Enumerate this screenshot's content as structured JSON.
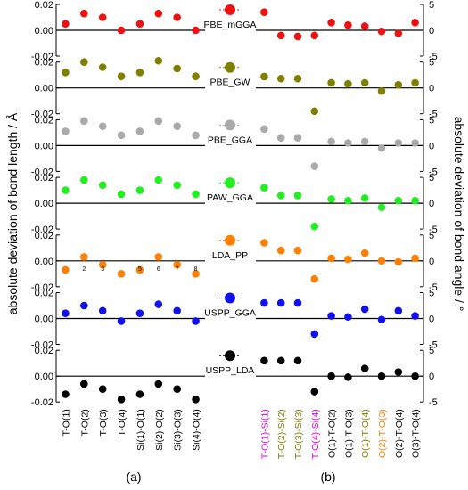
{
  "figure": {
    "ylabel_left": "absolute deviation of bond length / Å",
    "ylabel_right": "absolute deviation of bond angle / °",
    "label_a": "(a)",
    "label_b": "(b)",
    "left_categories": [
      "T-O(1)",
      "T-O(2)",
      "T-O(3)",
      "T-O(4)",
      "Si(1)-O(1)",
      "Si(2)-O(2)",
      "Si(3)-O(3)",
      "Si(4)-O(4)"
    ],
    "right_categories": [
      {
        "label": "T-O(1)-Si(1)",
        "color": "#e000e0"
      },
      {
        "label": "T-O(2)-Si(2)",
        "color": "#808000"
      },
      {
        "label": "T-O(3)-Si(3)",
        "color": "#808000"
      },
      {
        "label": "T-O(4)-Si(4)",
        "color": "#e000e0"
      },
      {
        "label": "O(1)-T-O(2)",
        "color": "#000000"
      },
      {
        "label": "O(1)-T-O(3)",
        "color": "#000000"
      },
      {
        "label": "O(1)-T-O(4)",
        "color": "#808000"
      },
      {
        "label": "O(2)-T-O(3)",
        "color": "#ff8000"
      },
      {
        "label": "O(2)-T-O(4)",
        "color": "#000000"
      },
      {
        "label": "O(3)-T-O(4)",
        "color": "#000000"
      }
    ],
    "left_ticks": [
      "0.02",
      "0.00",
      "-0.02"
    ],
    "right_ticks": [
      "5",
      "0",
      "-5"
    ],
    "panel_a_point_labels": [
      "2",
      "3",
      "5",
      "6",
      "7",
      "8"
    ]
  },
  "chart_data": [
    {
      "type": "scatter",
      "series_label": "PBE_mGGA",
      "color": "#ee1111",
      "bond_length_deviation": [
        0.005,
        0.013,
        0.01,
        0.0,
        0.005,
        0.013,
        0.01,
        0.0
      ],
      "bond_angle_deviation": [
        3.5,
        -1.0,
        -1.2,
        -1.0,
        1.5,
        1.0,
        0.8,
        -0.2,
        -0.6,
        1.5
      ],
      "ylim_length": [
        -0.02,
        0.02
      ],
      "ylim_angle": [
        -5,
        5
      ]
    },
    {
      "type": "scatter",
      "series_label": "PBE_GW",
      "color": "#808000",
      "bond_length_deviation": [
        0.012,
        0.02,
        0.016,
        0.009,
        0.012,
        0.021,
        0.015,
        0.009
      ],
      "bond_angle_deviation": [
        2.2,
        1.8,
        1.8,
        -4.5,
        1.0,
        0.8,
        1.0,
        -0.6,
        0.6,
        1.0
      ],
      "ylim_length": [
        -0.02,
        0.02
      ],
      "ylim_angle": [
        -5,
        5
      ]
    },
    {
      "type": "scatter",
      "series_label": "PBE_GGA",
      "color": "#aaaaaa",
      "bond_length_deviation": [
        0.011,
        0.019,
        0.015,
        0.008,
        0.011,
        0.019,
        0.015,
        0.008
      ],
      "bond_angle_deviation": [
        3.2,
        1.5,
        1.5,
        -4.0,
        0.8,
        0.5,
        0.8,
        -0.5,
        0.5,
        0.5
      ],
      "ylim_length": [
        -0.02,
        0.02
      ],
      "ylim_angle": [
        -5,
        5
      ]
    },
    {
      "type": "scatter",
      "series_label": "PAW_GGA",
      "color": "#22ee22",
      "bond_length_deviation": [
        0.01,
        0.018,
        0.014,
        0.007,
        0.01,
        0.018,
        0.014,
        0.007
      ],
      "bond_angle_deviation": [
        3.0,
        1.5,
        1.5,
        -4.5,
        0.8,
        0.5,
        1.0,
        -0.8,
        0.5,
        0.5
      ],
      "ylim_length": [
        -0.02,
        0.02
      ],
      "ylim_angle": [
        -5,
        5
      ]
    },
    {
      "type": "scatter",
      "series_label": "LDA_PP",
      "color": "#ff8000",
      "bond_length_deviation": [
        -0.007,
        0.003,
        -0.003,
        -0.01,
        -0.007,
        0.003,
        -0.003,
        -0.01
      ],
      "bond_angle_deviation": [
        3.5,
        2.0,
        2.0,
        -3.5,
        0.5,
        0.3,
        1.5,
        0.0,
        -0.2,
        0.5
      ],
      "ylim_length": [
        -0.02,
        0.02
      ],
      "ylim_angle": [
        -5,
        5
      ]
    },
    {
      "type": "scatter",
      "series_label": "USPP_GGA",
      "color": "#1111ee",
      "bond_length_deviation": [
        0.004,
        0.01,
        0.006,
        -0.002,
        0.004,
        0.011,
        0.006,
        -0.002
      ],
      "bond_angle_deviation": [
        3.0,
        3.0,
        3.0,
        -3.0,
        0.5,
        0.3,
        1.8,
        -0.2,
        1.5,
        0.5
      ],
      "ylim_length": [
        -0.02,
        0.02
      ],
      "ylim_angle": [
        -5,
        5
      ]
    },
    {
      "type": "scatter",
      "series_label": "USPP_LDA",
      "color": "#000000",
      "bond_length_deviation": [
        -0.014,
        -0.006,
        -0.01,
        -0.018,
        -0.014,
        -0.006,
        -0.01,
        -0.018
      ],
      "bond_angle_deviation": [
        3.0,
        3.0,
        3.0,
        -3.0,
        0.0,
        -0.2,
        1.5,
        0.0,
        0.8,
        0.0
      ],
      "ylim_length": [
        -0.02,
        0.02
      ],
      "ylim_angle": [
        -5,
        5
      ]
    }
  ]
}
